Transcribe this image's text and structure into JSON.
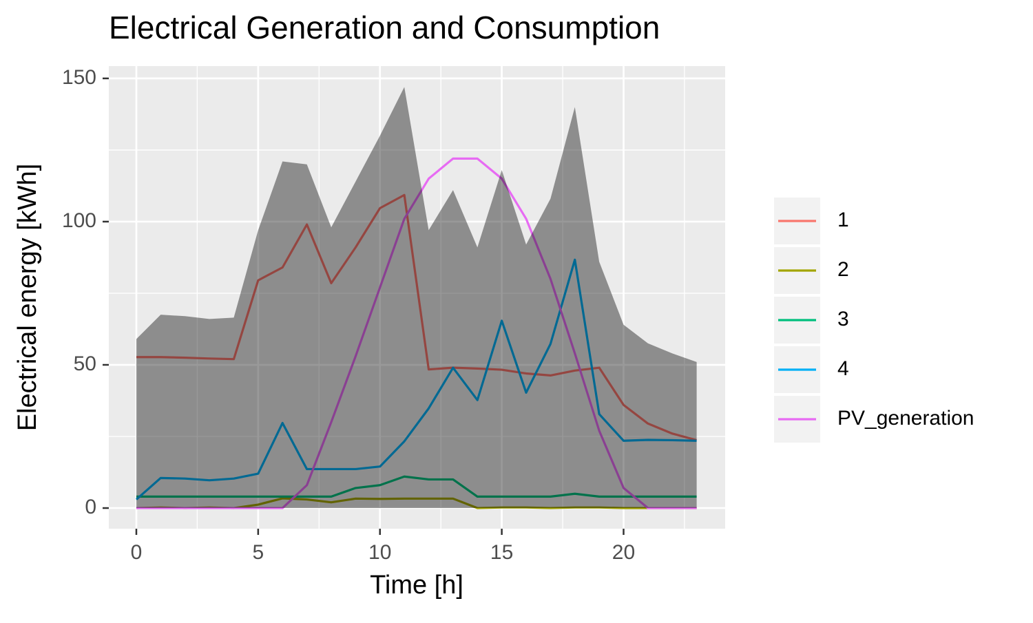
{
  "chart_data": {
    "type": "line",
    "title": "Electrical Generation and Consumption",
    "x_label": "Time [h]",
    "y_label": "Electrical energy [kWh]",
    "x": [
      0,
      1,
      2,
      3,
      4,
      5,
      6,
      7,
      8,
      9,
      10,
      11,
      12,
      13,
      14,
      15,
      16,
      17,
      18,
      19,
      20,
      21,
      22,
      23
    ],
    "area": {
      "color": "#000000",
      "values": [
        59,
        67.5,
        67,
        66,
        66.5,
        97,
        121,
        120,
        98,
        114,
        130,
        147,
        97,
        111,
        91,
        118,
        92,
        108,
        140,
        86,
        64,
        57.5,
        54,
        51
      ]
    },
    "series": [
      {
        "name": "1",
        "color": "#F8766D",
        "values": [
          52.7,
          52.7,
          52.5,
          52.2,
          52,
          79.5,
          84,
          99,
          78.5,
          91,
          104.7,
          109.3,
          48.4,
          49,
          48.7,
          48.3,
          47,
          46.3,
          48,
          49,
          36,
          29.5,
          26,
          23.7
        ]
      },
      {
        "name": "2",
        "color": "#A3A500",
        "values": [
          0,
          0.2,
          0,
          0.2,
          0,
          1.2,
          3.4,
          3,
          2,
          3.3,
          3.2,
          3.3,
          3.3,
          3.3,
          0,
          0.2,
          0.2,
          0,
          0.2,
          0.2,
          0,
          0,
          0,
          0
        ]
      },
      {
        "name": "3",
        "color": "#00BF7D",
        "values": [
          4,
          4,
          4,
          4,
          4,
          4,
          4,
          4,
          4,
          7,
          8,
          11,
          10,
          10,
          4,
          4,
          4,
          4,
          5,
          4,
          4,
          4,
          4,
          4
        ]
      },
      {
        "name": "4",
        "color": "#00B0F6",
        "values": [
          3,
          10.5,
          10.3,
          9.7,
          10.3,
          12,
          29.7,
          13.6,
          13.6,
          13.6,
          14.5,
          23.3,
          34.8,
          49,
          37.7,
          65.4,
          40.3,
          57.3,
          86.7,
          32.8,
          23.5,
          23.8,
          23.7,
          23.5
        ]
      },
      {
        "name": "PV_generation",
        "color": "#E76BF3",
        "values": [
          0,
          0,
          0,
          0,
          0,
          0,
          0,
          8,
          30,
          53,
          77,
          101,
          115,
          122,
          122,
          115,
          101,
          80,
          54,
          27,
          7,
          0,
          0,
          0
        ]
      }
    ],
    "xlim": [
      -1.13,
      24.17
    ],
    "ylim": [
      -7.2,
      154.3
    ],
    "xticks": [
      0,
      5,
      10,
      15,
      20
    ],
    "yticks": [
      0,
      50,
      100,
      150
    ],
    "grid": true
  }
}
